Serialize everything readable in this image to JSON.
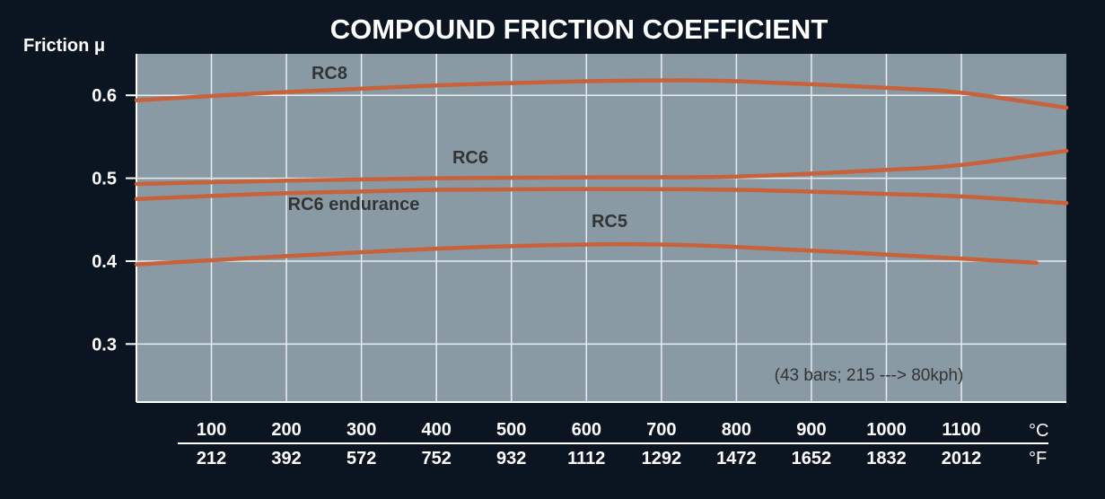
{
  "chart_data": {
    "type": "line",
    "title": "COMPOUND FRICTION COEFFICIENT",
    "ylabel": "Friction μ",
    "y_ticks": [
      {
        "value": 0.6,
        "label": "0.6"
      },
      {
        "value": 0.5,
        "label": "0.5"
      },
      {
        "value": 0.4,
        "label": "0.4"
      },
      {
        "value": 0.3,
        "label": "0.3"
      }
    ],
    "ylim": [
      0.23,
      0.65
    ],
    "xlim": [
      0,
      1240
    ],
    "x_ticks_c": [
      "100",
      "200",
      "300",
      "400",
      "500",
      "600",
      "700",
      "800",
      "900",
      "1000",
      "1100"
    ],
    "x_ticks_c_values": [
      100,
      200,
      300,
      400,
      500,
      600,
      700,
      800,
      900,
      1000,
      1100
    ],
    "x_ticks_f": [
      "212",
      "392",
      "572",
      "752",
      "932",
      "1112",
      "1292",
      "1472",
      "1652",
      "1832",
      "2012"
    ],
    "x_unit_c": "°C",
    "x_unit_f": "°F",
    "annotation": "(43 bars; 215 ---> 80kph)",
    "grid": true,
    "series": [
      {
        "name": "RC8",
        "x": [
          0,
          200,
          400,
          600,
          700,
          800,
          1000,
          1100,
          1240
        ],
        "y": [
          0.594,
          0.604,
          0.612,
          0.617,
          0.618,
          0.617,
          0.609,
          0.603,
          0.585
        ]
      },
      {
        "name": "RC6",
        "x": [
          0,
          200,
          400,
          600,
          800,
          1000,
          1100,
          1240
        ],
        "y": [
          0.493,
          0.497,
          0.5,
          0.501,
          0.502,
          0.51,
          0.516,
          0.533
        ]
      },
      {
        "name": "RC6 endurance",
        "x": [
          0,
          200,
          400,
          600,
          800,
          1000,
          1100,
          1240
        ],
        "y": [
          0.475,
          0.482,
          0.486,
          0.487,
          0.486,
          0.481,
          0.478,
          0.47
        ]
      },
      {
        "name": "RC5",
        "x": [
          0,
          200,
          400,
          600,
          700,
          800,
          1000,
          1200
        ],
        "y": [
          0.396,
          0.406,
          0.415,
          0.42,
          0.42,
          0.417,
          0.408,
          0.398
        ]
      }
    ],
    "line_color": "#c8623a",
    "plot_background": "#8a9aa5",
    "grid_color": "#e8edf0",
    "text_color": "#ffffff",
    "series_label_color": "#333333"
  }
}
